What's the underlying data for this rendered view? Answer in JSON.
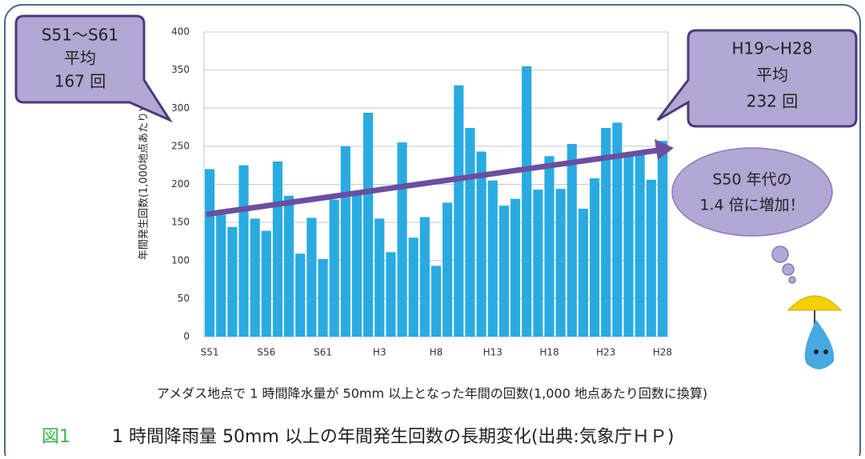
{
  "chart_data": {
    "type": "bar",
    "y_label": "年間発生回数(1,000地点あたり)",
    "categories": [
      "S51",
      null,
      null,
      null,
      null,
      "S56",
      null,
      null,
      null,
      null,
      "S61",
      null,
      null,
      null,
      null,
      "H3",
      null,
      null,
      null,
      null,
      "H8",
      null,
      null,
      null,
      null,
      "H13",
      null,
      null,
      null,
      null,
      "H18",
      null,
      null,
      null,
      null,
      "H23",
      null,
      null,
      null,
      null,
      "H28"
    ],
    "values": [
      220,
      160,
      144,
      225,
      155,
      139,
      230,
      185,
      109,
      156,
      102,
      180,
      250,
      190,
      294,
      155,
      111,
      255,
      130,
      157,
      93,
      176,
      330,
      274,
      243,
      205,
      172,
      181,
      355,
      193,
      237,
      194,
      253,
      168,
      208,
      274,
      281,
      238,
      240,
      206,
      257
    ],
    "color": "#29abe2",
    "ylim": [
      0,
      400
    ],
    "yticks": [
      0,
      50,
      100,
      150,
      200,
      250,
      300,
      350,
      400
    ],
    "grid": true,
    "annotations": {
      "left_callout": [
        "S51～S61",
        "平均",
        "167 回"
      ],
      "right_callout": [
        "H19～H28",
        "平均",
        "232 回"
      ],
      "cloud": [
        "S50 年代の",
        "1.4 倍に増加！"
      ]
    },
    "caption": "アメダス地点で 1 時間降水量が 50mm 以上となった年間の回数(1,000 地点あたり回数に換算)",
    "figure_number": "図1",
    "figure_title": "1 時間降雨量 50mm 以上の年間発生回数の長期変化(出典:気象庁ＨＰ)"
  }
}
